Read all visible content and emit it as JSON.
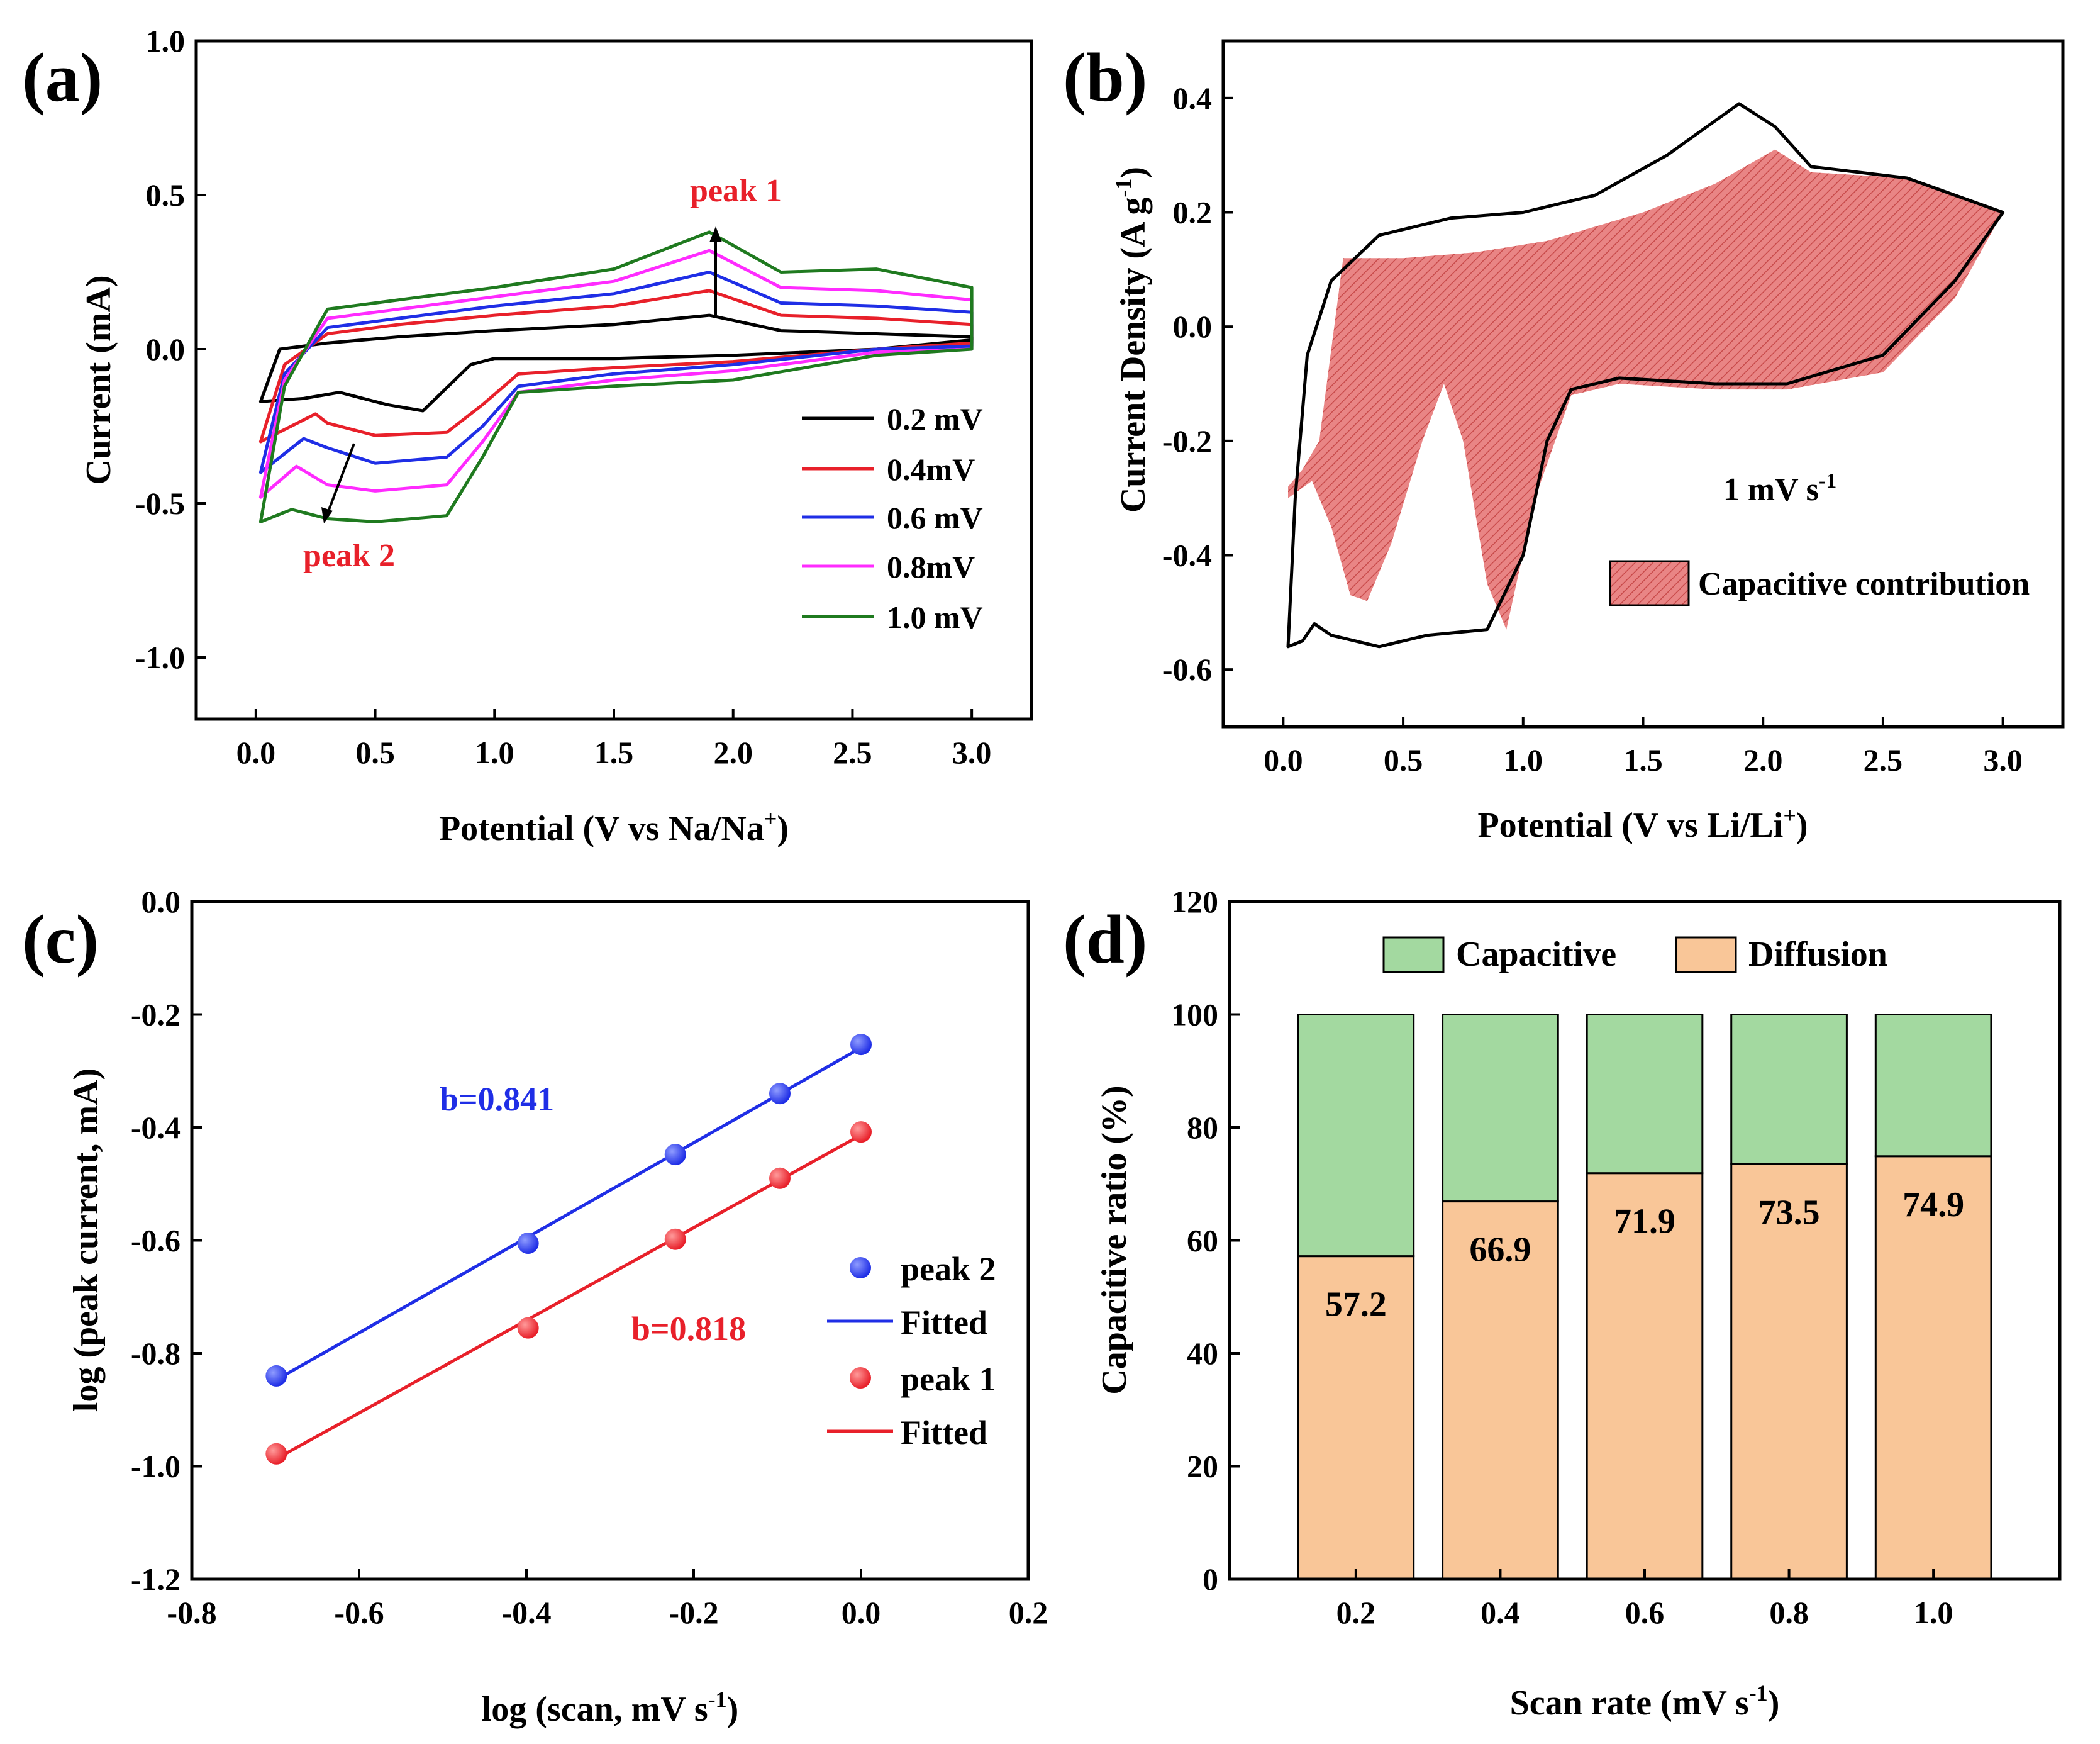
{
  "colors": {
    "black": "#000000",
    "red": "#e8202a",
    "blue": "#1f2ee6",
    "magenta": "#ff2bff",
    "green": "#1f7a1f",
    "shade": "#e87a7a",
    "capacitive": "#a3d9a0",
    "diffusion": "#f9c698"
  },
  "chart_data": [
    {
      "id": "a",
      "panel_label": "(a)",
      "type": "line",
      "xlabel": "Potential (V vs Na/Na",
      "xlabel_sup": "+",
      "xlabel_tail": ")",
      "ylabel": "Current (mA)",
      "xlim": [
        -0.25,
        3.25
      ],
      "ylim": [
        -1.2,
        1.0
      ],
      "xticks": [
        "0.0",
        "0.5",
        "1.0",
        "1.5",
        "2.0",
        "2.5",
        "3.0"
      ],
      "yticks": [
        "-1.0",
        "-0.5",
        "0.0",
        "0.5",
        "1.0"
      ],
      "annotations": [
        "peak 1",
        "peak 2"
      ],
      "series": [
        {
          "name": "0.2 mV",
          "color": "black",
          "upper": [
            [
              0.02,
              -0.17
            ],
            [
              0.1,
              0.0
            ],
            [
              0.3,
              0.02
            ],
            [
              0.6,
              0.04
            ],
            [
              1.0,
              0.06
            ],
            [
              1.5,
              0.08
            ],
            [
              1.9,
              0.11
            ],
            [
              2.2,
              0.06
            ],
            [
              2.6,
              0.05
            ],
            [
              3.0,
              0.04
            ]
          ],
          "lower": [
            [
              3.0,
              0.03
            ],
            [
              2.6,
              0.0
            ],
            [
              2.0,
              -0.02
            ],
            [
              1.5,
              -0.03
            ],
            [
              1.0,
              -0.03
            ],
            [
              0.9,
              -0.05
            ],
            [
              0.7,
              -0.2
            ],
            [
              0.55,
              -0.18
            ],
            [
              0.35,
              -0.14
            ],
            [
              0.2,
              -0.16
            ],
            [
              0.02,
              -0.17
            ]
          ]
        },
        {
          "name": "0.4mV",
          "color": "red",
          "upper": [
            [
              0.02,
              -0.3
            ],
            [
              0.12,
              -0.05
            ],
            [
              0.3,
              0.05
            ],
            [
              0.6,
              0.08
            ],
            [
              1.0,
              0.11
            ],
            [
              1.5,
              0.14
            ],
            [
              1.9,
              0.19
            ],
            [
              2.2,
              0.11
            ],
            [
              2.6,
              0.1
            ],
            [
              3.0,
              0.08
            ]
          ],
          "lower": [
            [
              3.0,
              0.02
            ],
            [
              2.6,
              0.0
            ],
            [
              2.0,
              -0.04
            ],
            [
              1.5,
              -0.06
            ],
            [
              1.1,
              -0.08
            ],
            [
              0.95,
              -0.18
            ],
            [
              0.8,
              -0.27
            ],
            [
              0.5,
              -0.28
            ],
            [
              0.3,
              -0.24
            ],
            [
              0.25,
              -0.21
            ],
            [
              0.02,
              -0.3
            ]
          ]
        },
        {
          "name": "0.6 mV",
          "color": "blue",
          "upper": [
            [
              0.02,
              -0.4
            ],
            [
              0.12,
              -0.08
            ],
            [
              0.3,
              0.07
            ],
            [
              0.6,
              0.1
            ],
            [
              1.0,
              0.14
            ],
            [
              1.5,
              0.18
            ],
            [
              1.9,
              0.25
            ],
            [
              2.2,
              0.15
            ],
            [
              2.6,
              0.14
            ],
            [
              3.0,
              0.12
            ]
          ],
          "lower": [
            [
              3.0,
              0.01
            ],
            [
              2.6,
              0.0
            ],
            [
              2.0,
              -0.05
            ],
            [
              1.5,
              -0.08
            ],
            [
              1.1,
              -0.12
            ],
            [
              0.95,
              -0.25
            ],
            [
              0.8,
              -0.35
            ],
            [
              0.5,
              -0.37
            ],
            [
              0.3,
              -0.32
            ],
            [
              0.2,
              -0.29
            ],
            [
              0.02,
              -0.4
            ]
          ]
        },
        {
          "name": "0.8mV",
          "color": "magenta",
          "upper": [
            [
              0.02,
              -0.48
            ],
            [
              0.12,
              -0.1
            ],
            [
              0.3,
              0.1
            ],
            [
              0.6,
              0.13
            ],
            [
              1.0,
              0.17
            ],
            [
              1.5,
              0.22
            ],
            [
              1.9,
              0.32
            ],
            [
              2.2,
              0.2
            ],
            [
              2.6,
              0.19
            ],
            [
              3.0,
              0.16
            ]
          ],
          "lower": [
            [
              3.0,
              0.0
            ],
            [
              2.6,
              -0.01
            ],
            [
              2.0,
              -0.07
            ],
            [
              1.5,
              -0.1
            ],
            [
              1.1,
              -0.14
            ],
            [
              0.95,
              -0.3
            ],
            [
              0.8,
              -0.44
            ],
            [
              0.5,
              -0.46
            ],
            [
              0.3,
              -0.44
            ],
            [
              0.17,
              -0.38
            ],
            [
              0.02,
              -0.48
            ]
          ]
        },
        {
          "name": "1.0 mV",
          "color": "green",
          "upper": [
            [
              0.02,
              -0.56
            ],
            [
              0.12,
              -0.12
            ],
            [
              0.3,
              0.13
            ],
            [
              0.6,
              0.16
            ],
            [
              1.0,
              0.2
            ],
            [
              1.5,
              0.26
            ],
            [
              1.9,
              0.38
            ],
            [
              2.2,
              0.25
            ],
            [
              2.6,
              0.26
            ],
            [
              3.0,
              0.2
            ]
          ],
          "lower": [
            [
              3.0,
              0.0
            ],
            [
              2.6,
              -0.02
            ],
            [
              2.0,
              -0.1
            ],
            [
              1.5,
              -0.12
            ],
            [
              1.1,
              -0.14
            ],
            [
              0.95,
              -0.35
            ],
            [
              0.8,
              -0.54
            ],
            [
              0.5,
              -0.56
            ],
            [
              0.3,
              -0.55
            ],
            [
              0.15,
              -0.52
            ],
            [
              0.02,
              -0.56
            ]
          ]
        }
      ]
    },
    {
      "id": "b",
      "panel_label": "(b)",
      "type": "area",
      "xlabel": "Potential (V vs Li/Li",
      "xlabel_sup": "+",
      "xlabel_tail": ")",
      "ylabel": "Current Density (A g",
      "ylabel_sup": "-1",
      "ylabel_tail": ")",
      "xlim": [
        -0.25,
        3.25
      ],
      "ylim": [
        -0.7,
        0.5
      ],
      "xticks": [
        "0.0",
        "0.5",
        "1.0",
        "1.5",
        "2.0",
        "2.5",
        "3.0"
      ],
      "yticks": [
        "-0.6",
        "-0.4",
        "-0.2",
        "0.0",
        "0.2",
        "0.4"
      ],
      "rate_label": "1 mV s",
      "rate_sup": "-1",
      "legend": [
        "Capacitive contribution"
      ],
      "total_curve": [
        [
          0.02,
          -0.56
        ],
        [
          0.05,
          -0.3
        ],
        [
          0.1,
          -0.05
        ],
        [
          0.2,
          0.08
        ],
        [
          0.4,
          0.16
        ],
        [
          0.7,
          0.19
        ],
        [
          1.0,
          0.2
        ],
        [
          1.3,
          0.23
        ],
        [
          1.6,
          0.3
        ],
        [
          1.9,
          0.39
        ],
        [
          2.05,
          0.35
        ],
        [
          2.2,
          0.28
        ],
        [
          2.6,
          0.26
        ],
        [
          3.0,
          0.2
        ],
        [
          2.8,
          0.08
        ],
        [
          2.5,
          -0.05
        ],
        [
          2.1,
          -0.1
        ],
        [
          1.8,
          -0.1
        ],
        [
          1.4,
          -0.09
        ],
        [
          1.2,
          -0.11
        ],
        [
          1.1,
          -0.2
        ],
        [
          1.0,
          -0.4
        ],
        [
          0.85,
          -0.53
        ],
        [
          0.6,
          -0.54
        ],
        [
          0.4,
          -0.56
        ],
        [
          0.2,
          -0.54
        ],
        [
          0.13,
          -0.52
        ],
        [
          0.08,
          -0.55
        ],
        [
          0.02,
          -0.56
        ]
      ],
      "capacitive_region": [
        [
          0.02,
          -0.28
        ],
        [
          0.08,
          -0.25
        ],
        [
          0.15,
          -0.2
        ],
        [
          0.25,
          0.12
        ],
        [
          0.5,
          0.12
        ],
        [
          0.8,
          0.13
        ],
        [
          1.1,
          0.15
        ],
        [
          1.5,
          0.2
        ],
        [
          1.8,
          0.25
        ],
        [
          2.05,
          0.31
        ],
        [
          2.2,
          0.27
        ],
        [
          2.6,
          0.26
        ],
        [
          3.0,
          0.2
        ],
        [
          2.8,
          0.05
        ],
        [
          2.5,
          -0.08
        ],
        [
          2.1,
          -0.11
        ],
        [
          1.8,
          -0.11
        ],
        [
          1.4,
          -0.1
        ],
        [
          1.2,
          -0.12
        ],
        [
          1.05,
          -0.3
        ],
        [
          0.93,
          -0.53
        ],
        [
          0.85,
          -0.45
        ],
        [
          0.75,
          -0.2
        ],
        [
          0.67,
          -0.1
        ],
        [
          0.58,
          -0.2
        ],
        [
          0.45,
          -0.38
        ],
        [
          0.35,
          -0.48
        ],
        [
          0.28,
          -0.47
        ],
        [
          0.2,
          -0.35
        ],
        [
          0.12,
          -0.27
        ],
        [
          0.02,
          -0.3
        ]
      ]
    },
    {
      "id": "c",
      "panel_label": "(c)",
      "type": "scatter",
      "xlabel": "log (scan, mV s",
      "xlabel_sup": "-1",
      "xlabel_tail": ")",
      "ylabel": "log (peak current, mA)",
      "xlim": [
        -0.8,
        0.2
      ],
      "ylim": [
        -1.2,
        0.0
      ],
      "xticks": [
        "-0.8",
        "-0.6",
        "-0.4",
        "-0.2",
        "0.0",
        "0.2"
      ],
      "yticks": [
        "-1.2",
        "-1.0",
        "-0.8",
        "-0.6",
        "-0.4",
        "-0.2",
        "0.0"
      ],
      "x": [
        -0.699,
        -0.398,
        -0.222,
        -0.097,
        0.0
      ],
      "series": [
        {
          "name": "peak 2",
          "color": "blue",
          "values": [
            -0.84,
            -0.605,
            -0.448,
            -0.34,
            -0.253
          ],
          "slope_label": "b=0.841"
        },
        {
          "name": "peak 1",
          "color": "red",
          "values": [
            -0.978,
            -0.755,
            -0.598,
            -0.49,
            -0.408
          ],
          "slope_label": "b=0.818"
        }
      ],
      "legend": [
        "peak 2",
        "Fitted",
        "peak 1",
        "Fitted"
      ]
    },
    {
      "id": "d",
      "panel_label": "(d)",
      "type": "bar",
      "xlabel": "Scan rate (mV s",
      "xlabel_sup": "-1",
      "xlabel_tail": ")",
      "ylabel": "Capacitive ratio (%)",
      "ylim": [
        0,
        120
      ],
      "yticks": [
        "0",
        "20",
        "40",
        "60",
        "80",
        "100",
        "120"
      ],
      "categories": [
        "0.2",
        "0.4",
        "0.6",
        "0.8",
        "1.0"
      ],
      "series": [
        {
          "name": "Capacitive",
          "values": [
            42.8,
            33.1,
            28.1,
            26.5,
            25.1
          ]
        },
        {
          "name": "Diffusion",
          "values": [
            57.2,
            66.9,
            71.9,
            73.5,
            74.9
          ]
        }
      ],
      "data_labels": [
        "57.2",
        "66.9",
        "71.9",
        "73.5",
        "74.9"
      ],
      "legend": [
        "Capacitive",
        "Diffusion"
      ]
    }
  ]
}
